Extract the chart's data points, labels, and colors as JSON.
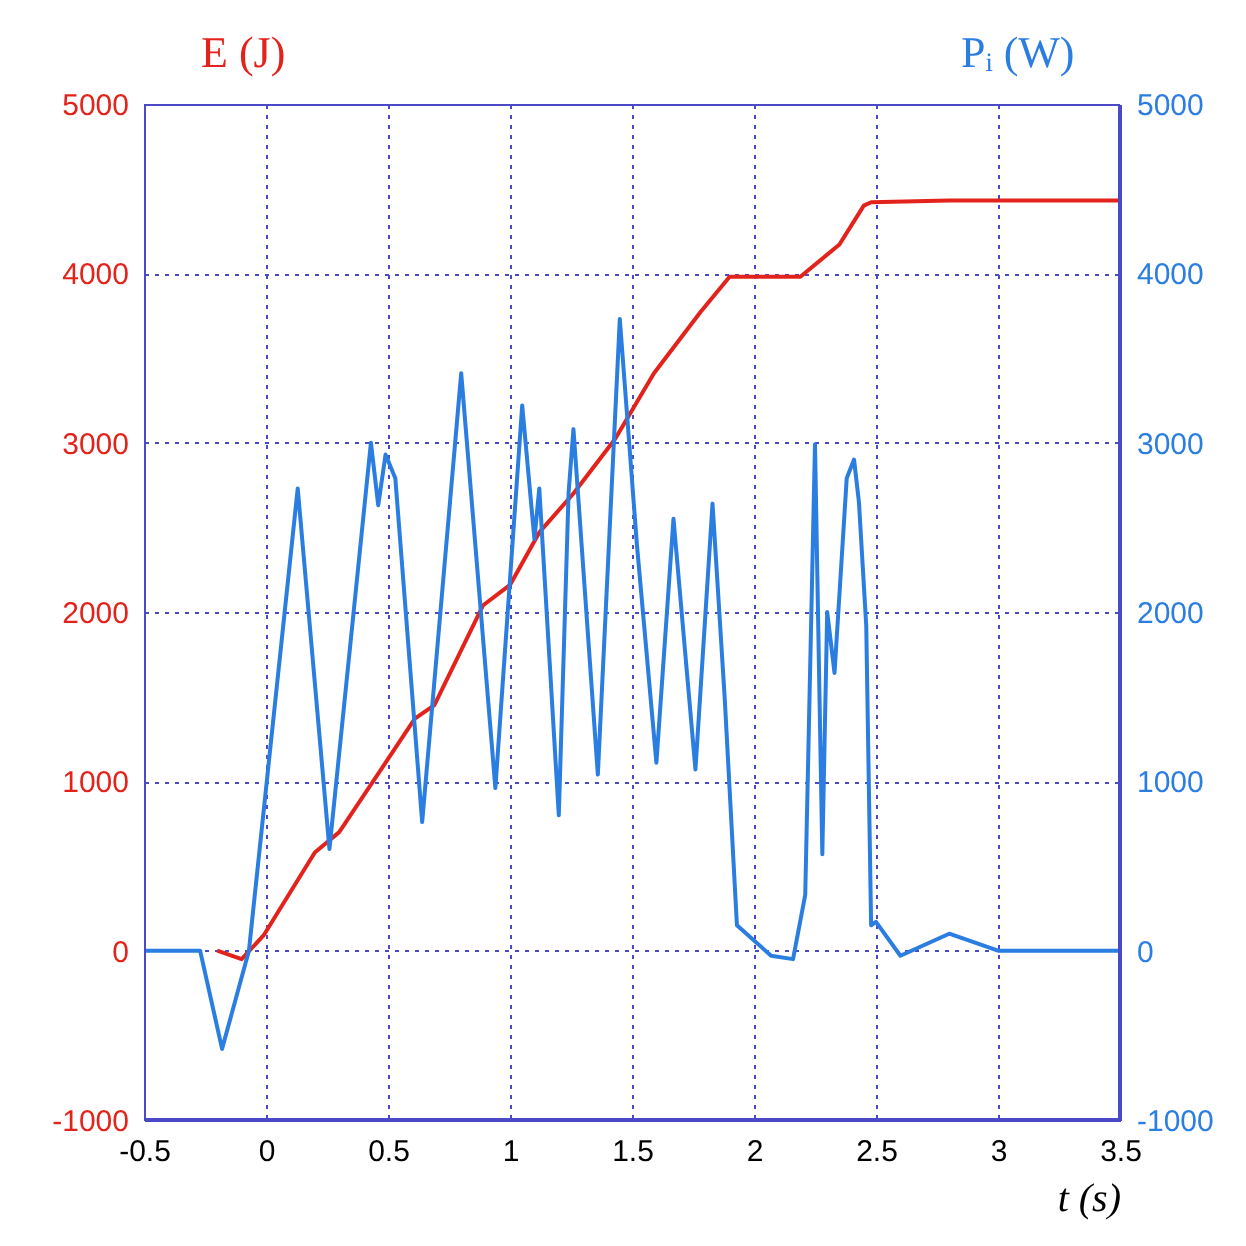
{
  "chart_data": {
    "type": "line",
    "xlabel": "t (s)",
    "ylabel": "E (J)",
    "y2label": "Pᵢ (W)",
    "xlim": [
      -0.5,
      3.5
    ],
    "xticks": [
      -0.5,
      0,
      0.5,
      1,
      1.5,
      2,
      2.5,
      3,
      3.5
    ],
    "ylim": [
      -1000,
      5000
    ],
    "yticks": [
      -1000,
      0,
      1000,
      2000,
      3000,
      4000,
      5000
    ],
    "y2lim": [
      -1000,
      5000
    ],
    "y2ticks": [
      -1000,
      0,
      1000,
      2000,
      3000,
      4000,
      5000
    ],
    "grid": true,
    "line_style": "solid",
    "marker": "none",
    "series": [
      {
        "color": "#e3231b",
        "x": [
          -0.2,
          -0.1,
          -0.01,
          0.2,
          0.3,
          0.49,
          0.61,
          0.69,
          0.89,
          1.0,
          1.12,
          1.26,
          1.43,
          1.59,
          1.78,
          1.9,
          2.19,
          2.35,
          2.45,
          2.48,
          2.8,
          3.5
        ],
        "values": [
          0,
          -50,
          90,
          580,
          700,
          1110,
          1370,
          1450,
          2040,
          2160,
          2470,
          2700,
          3020,
          3410,
          3770,
          3980,
          3980,
          4170,
          4400,
          4420,
          4430,
          4430
        ]
      },
      {
        "color": "#2a7de1",
        "axis": "y2",
        "x": [
          -0.5,
          -0.27,
          -0.18,
          -0.07,
          0.13,
          0.26,
          0.43,
          0.46,
          0.49,
          0.53,
          0.64,
          0.8,
          0.94,
          1.05,
          1.1,
          1.12,
          1.2,
          1.24,
          1.26,
          1.36,
          1.45,
          1.52,
          1.6,
          1.67,
          1.76,
          1.83,
          1.88,
          1.93,
          2.07,
          2.16,
          2.21,
          2.25,
          2.28,
          2.3,
          2.33,
          2.38,
          2.41,
          2.43,
          2.46,
          2.48,
          2.5,
          2.6,
          2.8,
          3.0,
          3.5
        ],
        "values": [
          0,
          0,
          -580,
          0,
          2730,
          600,
          3000,
          2630,
          2930,
          2790,
          760,
          3410,
          960,
          3220,
          2430,
          2730,
          800,
          2700,
          3080,
          1040,
          3730,
          2400,
          1110,
          2550,
          1070,
          2640,
          1490,
          150,
          -30,
          -50,
          330,
          2990,
          570,
          2000,
          1640,
          2790,
          2900,
          2650,
          1920,
          150,
          170,
          -30,
          100,
          0,
          0
        ]
      }
    ]
  }
}
